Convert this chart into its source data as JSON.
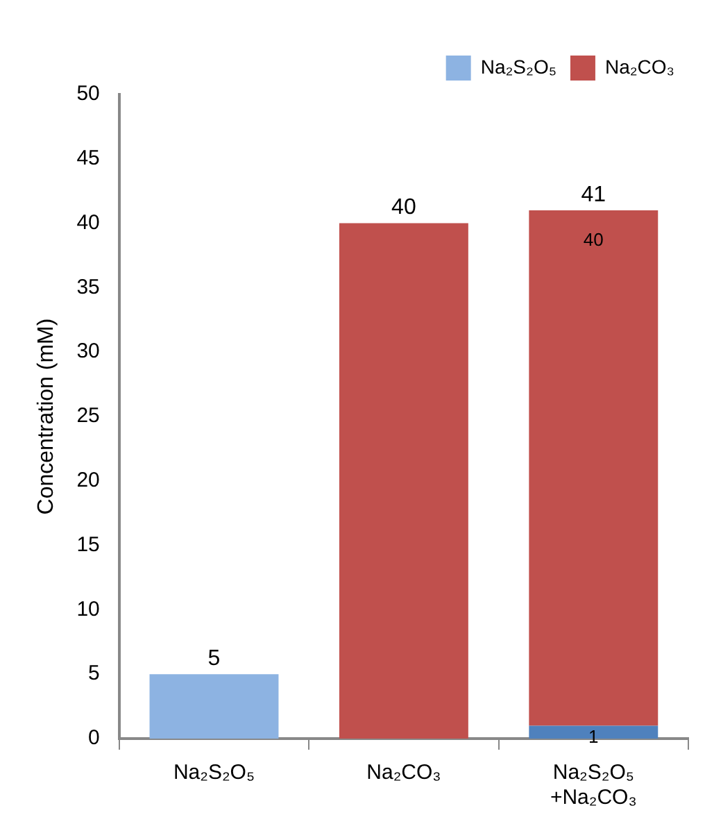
{
  "chart_data": {
    "type": "bar",
    "stacked": true,
    "ylabel": "Concentration (mM)",
    "categories": [
      "Na₂S₂O₅",
      "Na₂CO₃",
      "Na₂S₂O₅\n+Na₂CO₃"
    ],
    "series": [
      {
        "name": "Na₂S₂O₅",
        "color": "#8db3e2",
        "colors": [
          "#8db3e2",
          "#8db3e2",
          "#4f81bd"
        ],
        "values": [
          5,
          0,
          1
        ],
        "value_labels": [
          null,
          null,
          "1"
        ]
      },
      {
        "name": "Na₂CO₃",
        "color": "#c0504d",
        "values": [
          0,
          40,
          40
        ],
        "value_labels": [
          null,
          null,
          "40"
        ]
      }
    ],
    "totals": [
      "5",
      "40",
      "41"
    ],
    "ylim": [
      0,
      50
    ],
    "yticks": [
      0,
      5,
      10,
      15,
      20,
      25,
      30,
      35,
      40,
      45,
      50
    ],
    "grid": false,
    "legend": "top right"
  }
}
